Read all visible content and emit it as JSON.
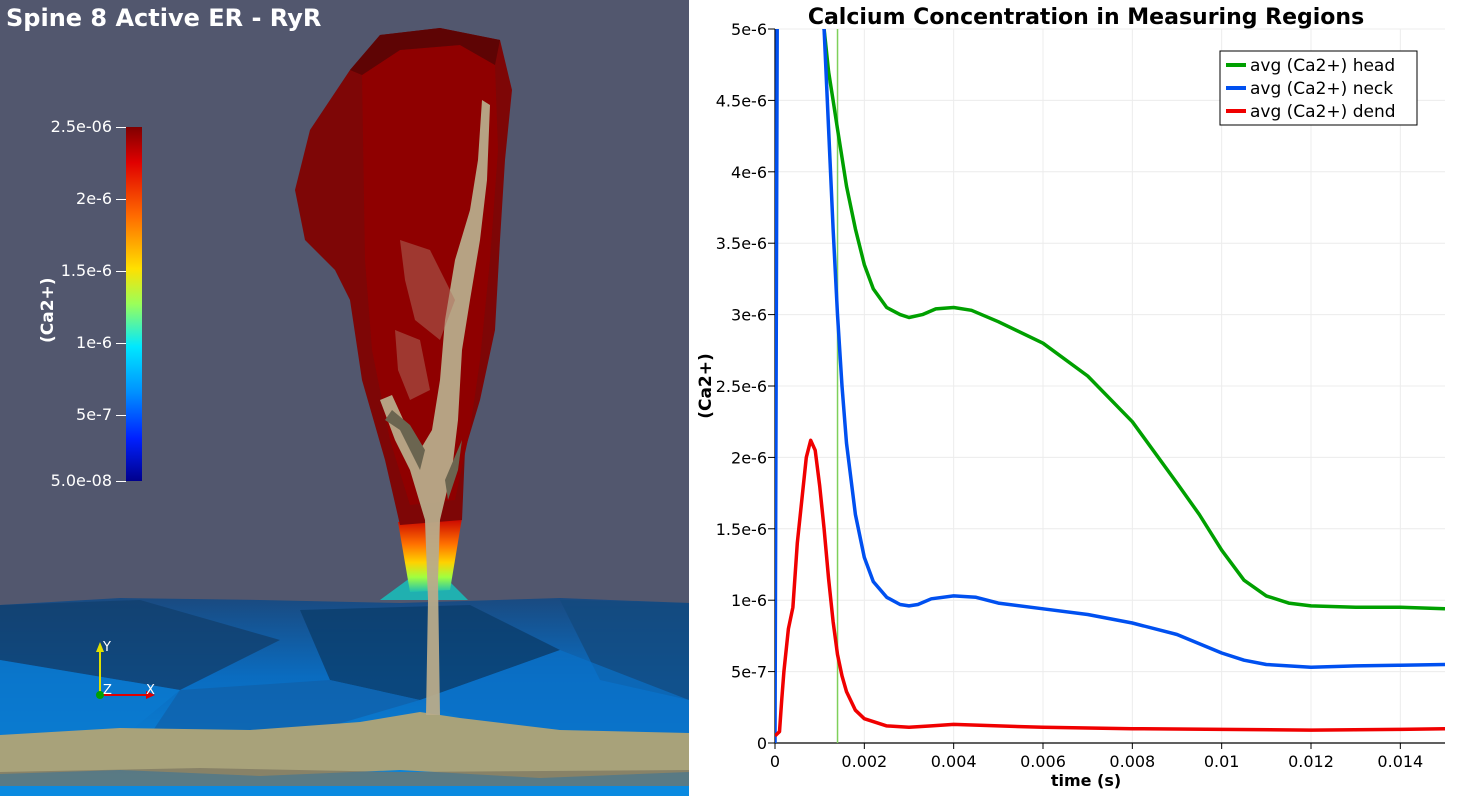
{
  "scene": {
    "title": "Spine 8 Active ER - RyR",
    "colorbar": {
      "title": "(Ca2+)",
      "labels": [
        "2.5e-06",
        "2e-6",
        "1.5e-6",
        "1e-6",
        "5e-7",
        "5.0e-08"
      ]
    },
    "axes": {
      "y": "Y",
      "z": "Z",
      "x": "X"
    }
  },
  "chart_data": {
    "type": "line",
    "title": "Calcium Concentration in Measuring Regions",
    "xlabel": "time (s)",
    "ylabel": "(Ca2+)",
    "xlim": [
      0,
      0.015
    ],
    "ylim": [
      0,
      5e-06
    ],
    "x_ticks": [
      "0",
      "0.002",
      "0.004",
      "0.006",
      "0.008",
      "0.01",
      "0.012",
      "0.014"
    ],
    "y_ticks": [
      "0",
      "5e-7",
      "1e-6",
      "1.5e-6",
      "2e-6",
      "2.5e-6",
      "3e-6",
      "3.5e-6",
      "4e-6",
      "4.5e-6",
      "5e-6"
    ],
    "legend_position": "top-right",
    "marker_time": 0.0014,
    "colors": {
      "head": "#00a000",
      "neck": "#0050f0",
      "dend": "#f00000",
      "marker": "#7fd05a"
    },
    "series": [
      {
        "name": "avg (Ca2+) head",
        "key": "head",
        "x": [
          0.0011,
          0.0012,
          0.0013,
          0.0014,
          0.0015,
          0.0016,
          0.0018,
          0.002,
          0.0022,
          0.0025,
          0.0028,
          0.003,
          0.0033,
          0.0036,
          0.004,
          0.0044,
          0.005,
          0.006,
          0.007,
          0.008,
          0.009,
          0.0095,
          0.01,
          0.0105,
          0.011,
          0.0115,
          0.012,
          0.013,
          0.014,
          0.015
        ],
        "y": [
          5e-06,
          4.7e-06,
          4.5e-06,
          4.3e-06,
          4.1e-06,
          3.9e-06,
          3.6e-06,
          3.35e-06,
          3.18e-06,
          3.05e-06,
          3e-06,
          2.98e-06,
          3e-06,
          3.04e-06,
          3.05e-06,
          3.03e-06,
          2.95e-06,
          2.8e-06,
          2.57e-06,
          2.25e-06,
          1.82e-06,
          1.6e-06,
          1.35e-06,
          1.14e-06,
          1.03e-06,
          9.8e-07,
          9.6e-07,
          9.5e-07,
          9.5e-07,
          9.4e-07
        ]
      },
      {
        "name": "avg (Ca2+) neck",
        "key": "neck",
        "x": [
          0,
          5e-05,
          0.0001,
          0.00015,
          0.0011,
          0.0012,
          0.0013,
          0.0014,
          0.0015,
          0.0016,
          0.0018,
          0.002,
          0.0022,
          0.0025,
          0.0028,
          0.003,
          0.0032,
          0.0035,
          0.004,
          0.0045,
          0.005,
          0.006,
          0.007,
          0.008,
          0.009,
          0.01,
          0.0105,
          0.011,
          0.012,
          0.013,
          0.014,
          0.015
        ],
        "y": [
          0,
          5e-06,
          5.5e-06,
          5.5e-06,
          5e-06,
          4.3e-06,
          3.6e-06,
          3e-06,
          2.5e-06,
          2.1e-06,
          1.6e-06,
          1.3e-06,
          1.13e-06,
          1.02e-06,
          9.7e-07,
          9.6e-07,
          9.7e-07,
          1.01e-06,
          1.03e-06,
          1.02e-06,
          9.8e-07,
          9.4e-07,
          9e-07,
          8.4e-07,
          7.6e-07,
          6.3e-07,
          5.8e-07,
          5.5e-07,
          5.3e-07,
          5.4e-07,
          5.45e-07,
          5.5e-07
        ]
      },
      {
        "name": "avg (Ca2+) dend",
        "key": "dend",
        "x": [
          0,
          0.0001,
          0.00015,
          0.0002,
          0.0003,
          0.0004,
          0.0005,
          0.0006,
          0.0007,
          0.0008,
          0.0009,
          0.001,
          0.0011,
          0.0012,
          0.0013,
          0.0014,
          0.0015,
          0.0016,
          0.0018,
          0.002,
          0.0025,
          0.003,
          0.0035,
          0.004,
          0.0045,
          0.005,
          0.006,
          0.008,
          0.01,
          0.012,
          0.014,
          0.015
        ],
        "y": [
          5e-08,
          8e-08,
          3e-07,
          5e-07,
          8e-07,
          9.5e-07,
          1.4e-06,
          1.7e-06,
          2e-06,
          2.12e-06,
          2.05e-06,
          1.8e-06,
          1.5e-06,
          1.15e-06,
          8.5e-07,
          6.2e-07,
          4.7e-07,
          3.6e-07,
          2.3e-07,
          1.7e-07,
          1.2e-07,
          1.1e-07,
          1.2e-07,
          1.3e-07,
          1.25e-07,
          1.2e-07,
          1.1e-07,
          1e-07,
          9.5e-08,
          9e-08,
          9.5e-08,
          1e-07
        ]
      }
    ]
  }
}
